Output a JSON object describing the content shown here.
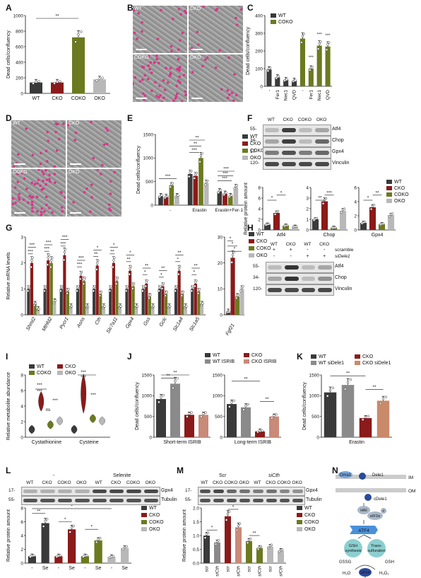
{
  "panels": {
    "A": "A",
    "B": "B",
    "C": "C",
    "D": "D",
    "E": "E",
    "F": "F",
    "G": "G",
    "H": "H",
    "I": "I",
    "J": "J",
    "K": "K",
    "L": "L",
    "M": "M",
    "N": "N"
  },
  "colors": {
    "WT": "#3a3a3a",
    "CKO": "#8b1a1a",
    "COKO": "#6b7a1f",
    "OKO": "#b8b8b8",
    "WT_ISRIB": "#8a8a8a",
    "CKO_ISRIB": "#c98a78",
    "CKO_siDele1": "#c98a6a",
    "magenta": "#e0308a"
  },
  "groups4": [
    "WT",
    "CKO",
    "COKO",
    "OKO"
  ],
  "A": {
    "chart_data": {
      "type": "bar",
      "ylabel": "Dead cells/confluency",
      "categories": [
        "WT",
        "CKO",
        "COKO",
        "OKO"
      ],
      "values": [
        140,
        140,
        720,
        180
      ],
      "ylim": [
        0,
        1000
      ],
      "yticks": [
        "0",
        "200",
        "400",
        "600",
        "800",
        "1000"
      ],
      "sig": "**"
    }
  },
  "B": {
    "labels": [
      "WT",
      "CKO",
      "COKO",
      "OKO"
    ]
  },
  "C": {
    "chart_data": {
      "type": "bar",
      "ylabel": "Dead cells/confluency",
      "legend": [
        "WT",
        "COKO"
      ],
      "categories": [
        "-",
        "Fer1",
        "Nec1",
        "QVD",
        "-",
        "Fer1",
        "Nec1",
        "QVD"
      ],
      "values": [
        95,
        50,
        35,
        30,
        270,
        100,
        230,
        225
      ],
      "ylim": [
        0,
        400
      ],
      "yticks": [
        "0",
        "100",
        "200",
        "300",
        "400"
      ],
      "sig": [
        "***",
        "***",
        "***"
      ]
    }
  },
  "D": {
    "labels": [
      "WT",
      "CKO",
      "COKO",
      "OKO"
    ]
  },
  "E": {
    "chart_data": {
      "type": "bar",
      "ylabel": "Dead cells/confluency",
      "legend": [
        "WT",
        "CKO",
        "COKO",
        "OKO"
      ],
      "categories": [
        "-",
        "Erastin",
        "Erastin+Fer-1"
      ],
      "series": [
        {
          "name": "WT",
          "values": [
            190,
            660,
            290
          ]
        },
        {
          "name": "CKO",
          "values": [
            170,
            620,
            240
          ]
        },
        {
          "name": "COKO",
          "values": [
            420,
            1000,
            190
          ]
        },
        {
          "name": "OKO",
          "values": [
            190,
            470,
            380
          ]
        }
      ],
      "ylim": [
        0,
        1500
      ],
      "yticks": [
        "0",
        "500",
        "1000",
        "1500"
      ],
      "sig": [
        "***",
        "**",
        "**",
        "***",
        "***",
        "***",
        "***"
      ]
    }
  },
  "F": {
    "lanes": [
      "WT",
      "CKO",
      "COKO",
      "OKO"
    ],
    "bands": [
      "Atf4",
      "Chop",
      "Gpx4",
      "Vinculin"
    ],
    "mw": [
      "55-",
      "34-",
      "17-",
      "120-"
    ],
    "legend": [
      "WT",
      "CKO",
      "COKO",
      "OKO"
    ],
    "ylabel": "Relative protein amount",
    "chart_data": [
      {
        "type": "bar",
        "xlabel": "Atf4",
        "categories": [
          "WT",
          "CKO",
          "COKO",
          "OKO"
        ],
        "values": [
          1,
          3.2,
          0.8,
          0.6
        ],
        "ylim": [
          0,
          8
        ],
        "yticks": [
          "0",
          "2",
          "4",
          "6",
          "8"
        ],
        "sig": [
          "*",
          "*"
        ]
      },
      {
        "type": "bar",
        "xlabel": "Chop",
        "categories": [
          "WT",
          "CKO",
          "COKO",
          "OKO"
        ],
        "values": [
          1,
          2.7,
          0.2,
          1.8
        ],
        "ylim": [
          0,
          4
        ],
        "yticks": [
          "0",
          "1",
          "2",
          "3",
          "4"
        ],
        "sig": [
          "**",
          "***"
        ]
      },
      {
        "type": "bar",
        "xlabel": "Gpx4",
        "categories": [
          "WT",
          "CKO",
          "COKO",
          "OKO"
        ],
        "values": [
          1,
          3.2,
          0.8,
          2.1
        ],
        "ylim": [
          0,
          6
        ],
        "yticks": [
          "0",
          "2",
          "4",
          "6"
        ],
        "sig": [
          "*",
          "**"
        ]
      }
    ]
  },
  "G": {
    "ylabel": "Relative mRNA levels",
    "legend": [
      "WT",
      "CKO",
      "COKO",
      "OKO"
    ],
    "chart_data": [
      {
        "type": "bar",
        "categories": [
          "Shmt2",
          "Mthfd2",
          "Pycr1",
          "Asns",
          "Cth",
          "Slc7a11",
          "Gpx4",
          "Gss",
          "Gclc",
          "Slc1a4",
          "Slc1a5"
        ],
        "series": [
          {
            "name": "WT",
            "values": [
              1,
              1,
              1,
              1,
              1,
              1,
              1,
              1,
              1,
              1,
              1
            ]
          },
          {
            "name": "CKO",
            "values": [
              2.0,
              2.1,
              2.3,
              1.5,
              1.9,
              2.0,
              1.7,
              1.2,
              1.1,
              1.7,
              1.2
            ]
          },
          {
            "name": "COKO",
            "values": [
              0.4,
              2.0,
              0.9,
              1.3,
              0.8,
              1.3,
              1.1,
              0.7,
              0.8,
              0.8,
              0.9
            ]
          },
          {
            "name": "OKO",
            "values": [
              0.2,
              0.5,
              0.3,
              0.3,
              0.3,
              0.3,
              0.3,
              0.3,
              0.3,
              0.3,
              0.4
            ]
          }
        ],
        "ylim": [
          0,
          3
        ],
        "yticks": [
          "0",
          "1",
          "2",
          "3"
        ],
        "sig": [
          "***",
          "***",
          "***",
          "***",
          "***",
          "***",
          "***",
          "**",
          "**",
          "**",
          "**",
          "**",
          "*",
          "*",
          "*",
          "*",
          "*",
          "*",
          "*"
        ]
      },
      {
        "type": "bar",
        "categories": [
          "Fgf21"
        ],
        "series": [
          {
            "name": "WT",
            "values": [
              1
            ]
          },
          {
            "name": "CKO",
            "values": [
              22
            ]
          },
          {
            "name": "COKO",
            "values": [
              7
            ]
          },
          {
            "name": "OKO",
            "values": [
              10
            ]
          }
        ],
        "ylim": [
          0,
          30
        ],
        "yticks": [
          "0",
          "10",
          "20",
          "30"
        ],
        "sig": [
          "*",
          "*",
          "*"
        ]
      }
    ]
  },
  "H": {
    "lanes": [
      "WT",
      "CKO",
      "WT",
      "CKO"
    ],
    "scramble_label": "scramble",
    "si_label": "siDele1",
    "scramble": [
      "+",
      "+",
      "-",
      "-"
    ],
    "si": [
      "-",
      "-",
      "+",
      "+"
    ],
    "bands": [
      "Atf4",
      "Chop",
      "Vinculin"
    ],
    "mw": [
      "55-",
      "34-",
      "120-"
    ]
  },
  "I": {
    "chart_data": {
      "type": "violin",
      "ylabel": "Relative metabolite abundance",
      "legend": [
        "WT",
        "CKO",
        "COKO",
        "OKO"
      ],
      "categories": [
        "Cystathionine",
        "Cysteine"
      ],
      "series": [
        {
          "name": "WT",
          "values": [
            1,
            1
          ]
        },
        {
          "name": "CKO",
          "values": [
            4.6,
            5.6
          ]
        },
        {
          "name": "COKO",
          "values": [
            1.6,
            2.4
          ]
        },
        {
          "name": "OKO",
          "values": [
            2.1,
            2.1
          ]
        }
      ],
      "ylim": [
        0,
        8
      ],
      "yticks": [
        "0",
        "2",
        "4",
        "6",
        "8"
      ],
      "sig": [
        "***",
        "***",
        "ns",
        "***",
        "***",
        "***",
        "***"
      ]
    }
  },
  "J": {
    "legend": [
      "WT",
      "WT ISRIB",
      "CKO",
      "CKO ISRIB"
    ],
    "ylabel": "Dead cells/confluency",
    "chart_data": [
      {
        "type": "bar",
        "xlabel": "Short-term ISRIB",
        "categories": [
          "WT",
          "WT ISRIB",
          "CKO",
          "CKO ISRIB"
        ],
        "values": [
          920,
          1290,
          540,
          540
        ],
        "ylim": [
          0,
          1500
        ],
        "yticks": [
          "0",
          "500",
          "1000",
          "1500"
        ],
        "sig": [
          "**",
          "**"
        ]
      },
      {
        "type": "bar",
        "xlabel": "Long-term ISRIB",
        "categories": [
          "WT",
          "WT ISRIB",
          "CKO",
          "CKO ISRIB"
        ],
        "values": [
          800,
          720,
          140,
          500
        ],
        "ylim": [
          0,
          1500
        ],
        "yticks": [
          "0",
          "500",
          "1000",
          "1500"
        ],
        "sig": [
          "**",
          "**"
        ]
      }
    ]
  },
  "K": {
    "legend": [
      "WT",
      "WT siDele1",
      "CKO",
      "CKO siDele1"
    ],
    "chart_data": {
      "type": "bar",
      "ylabel": "Dead cells/confluency",
      "xlabel": "Erastin",
      "categories": [
        "WT",
        "WT siDele1",
        "CKO",
        "CKO siDele1"
      ],
      "values": [
        1080,
        1260,
        460,
        880
      ],
      "ylim": [
        0,
        1500
      ],
      "yticks": [
        "0",
        "500",
        "1000",
        "1500"
      ],
      "sig": [
        "**",
        "**"
      ]
    }
  },
  "L": {
    "header_minus": "-",
    "header_selenite": "Selenite",
    "lanes": [
      "WT",
      "CKO",
      "COKO",
      "OKO",
      "WT",
      "CKO",
      "COKO",
      "OKO"
    ],
    "bands": [
      "Gpx4",
      "Tubulin"
    ],
    "mw": [
      "17-",
      "55-"
    ],
    "legend": [
      "WT",
      "CKO",
      "COKO",
      "OKO"
    ],
    "chart_data": {
      "type": "bar",
      "ylabel": "Relative protein amount",
      "categories": [
        "-",
        "Se",
        "-",
        "Se",
        "-",
        "Se",
        "-",
        "Se"
      ],
      "values": [
        1,
        5.8,
        1,
        4.9,
        1,
        3.3,
        0.9,
        2.2
      ],
      "ylim": [
        0,
        8
      ],
      "yticks": [
        "0",
        "2",
        "4",
        "6",
        "8"
      ],
      "sig": [
        "**",
        "*",
        "*",
        "*"
      ]
    }
  },
  "M": {
    "header_scr": "Scr",
    "header_si": "siCth",
    "lanes": [
      "WT",
      "CKO",
      "COKO",
      "OKO",
      "WT",
      "CKO",
      "COKO",
      "OKO"
    ],
    "bands": [
      "Gpx4",
      "Tubulin"
    ],
    "mw": [
      "17-",
      "55-"
    ],
    "legend": [
      "WT",
      "CKO",
      "COKO",
      "OKO"
    ],
    "chart_data": {
      "type": "bar",
      "ylabel": "Relative protein amount",
      "categories": [
        "scr",
        "siCth",
        "scr",
        "siCth",
        "scr",
        "siCth",
        "scr",
        "siCth"
      ],
      "values": [
        1,
        0.75,
        1.7,
        1.3,
        0.8,
        0.55,
        0.6,
        0.45
      ],
      "ylim": [
        0,
        2.0
      ],
      "yticks": [
        "0.0",
        "0.5",
        "1.0",
        "1.5",
        "2.0"
      ],
      "sig": [
        "*",
        "*",
        "**"
      ]
    }
  },
  "N": {
    "oma1": "Oma1",
    "dele1": "Dele1",
    "im": "IM",
    "om": "OM",
    "cdele1": "cDele1",
    "hri": "HRI",
    "eif2a": "eIF2α",
    "p": "P",
    "atf4": "ATF4",
    "gsh_syn": "GSH synthesis",
    "trans": "Trans-sulfuration",
    "gssg": "GSSG",
    "gsh": "GSH",
    "h2o": "H₂O",
    "h2o2": "H₂O₂",
    "gpx4": "GPX4",
    "lipid": "Lipid peroxidation",
    "ferro": "Ferroptosis"
  }
}
